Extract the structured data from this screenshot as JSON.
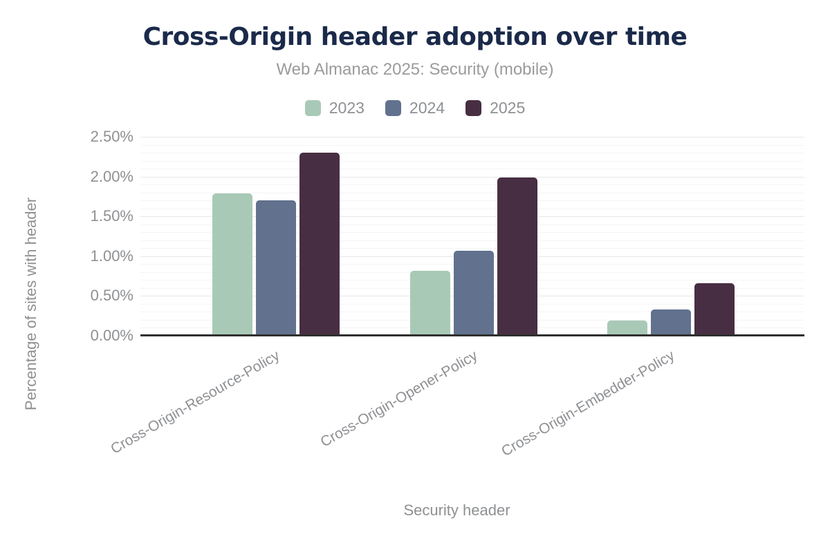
{
  "header": {
    "title": "Cross-Origin header adoption over time",
    "subtitle": "Web Almanac 2025: Security (mobile)"
  },
  "chart_data": {
    "type": "bar",
    "title": "Cross-Origin header adoption over time",
    "subtitle": "Web Almanac 2025: Security (mobile)",
    "xlabel": "Security header",
    "ylabel": "Percentage of sites with header",
    "categories": [
      "Cross-Origin-Resource-Policy",
      "Cross-Origin-Opener-Policy",
      "Cross-Origin-Embedder-Policy"
    ],
    "series": [
      {
        "name": "2023",
        "color": "#a9c9b7",
        "values": [
          1.79,
          0.82,
          0.19
        ]
      },
      {
        "name": "2024",
        "color": "#61718e",
        "values": [
          1.7,
          1.07,
          0.33
        ]
      },
      {
        "name": "2025",
        "color": "#482e42",
        "values": [
          2.3,
          1.99,
          0.66
        ]
      }
    ],
    "ylim": [
      0,
      2.5
    ],
    "yticks": [
      {
        "value": 0.0,
        "label": "0.00%"
      },
      {
        "value": 0.5,
        "label": "0.50%"
      },
      {
        "value": 1.0,
        "label": "1.00%"
      },
      {
        "value": 1.5,
        "label": "1.50%"
      },
      {
        "value": 2.0,
        "label": "2.00%"
      },
      {
        "value": 2.5,
        "label": "2.50%"
      }
    ],
    "grid": {
      "major_step": 0.5,
      "minor_step": 0.1,
      "major_color": "#e7e7e7",
      "minor_color": "#f5f5f5"
    },
    "legend_position": "top",
    "colors": {
      "title": "#1b2a4a",
      "subtitle": "#9b9b9b",
      "axis_labels": "#8e9093",
      "axis_line": "#2f2f2f",
      "background": "#ffffff"
    }
  }
}
